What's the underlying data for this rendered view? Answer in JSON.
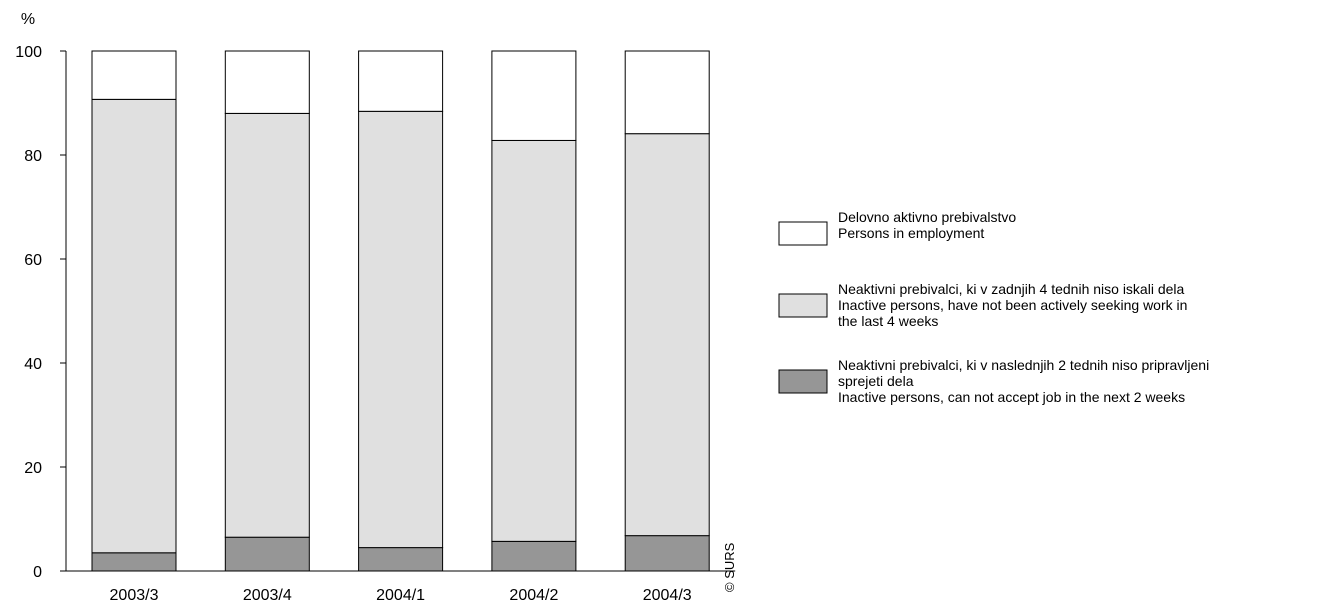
{
  "chart_data": {
    "type": "bar",
    "stacked": true,
    "ylabel": "%",
    "ylim": [
      0,
      100
    ],
    "yticks": [
      0,
      20,
      40,
      60,
      80,
      100
    ],
    "grid": false,
    "legend_position": "right",
    "categories": [
      "2003/3",
      "2003/4",
      "2004/1",
      "2004/2",
      "2004/3"
    ],
    "series": [
      {
        "name_lines": [
          "Neaktivni prebivalci, ki v naslednjih 2 tednih niso pripravljeni",
          "sprejeti dela",
          "Inactive persons, can not accept job in the next 2 weeks"
        ],
        "color": "#969696",
        "values": [
          3.5,
          6.5,
          4.5,
          5.7,
          6.8
        ]
      },
      {
        "name_lines": [
          "Neaktivni prebivalci, ki v zadnjih 4 tednih niso iskali dela",
          "Inactive persons, have not been actively seeking work in",
          "the last 4 weeks"
        ],
        "color": "#e0e0e0",
        "values": [
          87.2,
          81.5,
          83.9,
          77.1,
          77.3
        ]
      },
      {
        "name_lines": [
          "Delovno aktivno prebivalstvo",
          "Persons in employment"
        ],
        "color": "#ffffff",
        "values": [
          9.3,
          12.0,
          11.6,
          17.2,
          15.9
        ]
      }
    ],
    "legend_order": [
      2,
      1,
      0
    ],
    "copyright": "© SURS"
  }
}
